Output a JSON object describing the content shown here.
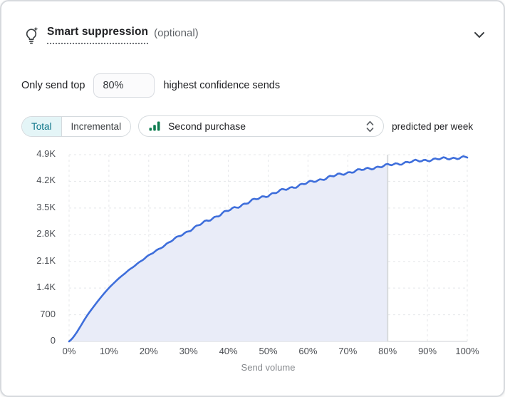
{
  "header": {
    "title": "Smart suppression",
    "optional": "(optional)"
  },
  "suppression": {
    "prefix": "Only send top",
    "value": "80%",
    "suffix": "highest confidence sends"
  },
  "controls": {
    "toggle": [
      {
        "label": "Total",
        "selected": true
      },
      {
        "label": "Incremental",
        "selected": false
      }
    ],
    "metric_select": {
      "value": "Second purchase"
    },
    "suffix": "predicted per week"
  },
  "colors": {
    "accent_blue": "#3e6edb",
    "area_fill": "#e9ecf8",
    "teal_text": "#0c7589",
    "teal_bg": "#e4f5f7",
    "green_icon": "#0e7c50",
    "marker_line": "#d8dadc",
    "grid_line": "#e5e7ea",
    "axis_line": "#dfe1e4"
  },
  "chart_data": {
    "type": "area",
    "title": "",
    "xlabel": "Send volume",
    "ylabel": "",
    "x_percent": [
      0,
      5,
      10,
      15,
      20,
      25,
      30,
      35,
      40,
      45,
      50,
      55,
      60,
      65,
      70,
      75,
      80,
      85,
      90,
      95,
      100
    ],
    "values": [
      0,
      750,
      1400,
      1870,
      2250,
      2590,
      2900,
      3180,
      3430,
      3650,
      3840,
      4010,
      4160,
      4300,
      4430,
      4530,
      4620,
      4700,
      4760,
      4800,
      4830
    ],
    "x_ticks": [
      "0%",
      "10%",
      "20%",
      "30%",
      "40%",
      "50%",
      "60%",
      "70%",
      "80%",
      "90%",
      "100%"
    ],
    "y_ticks_top_to_bottom": [
      "4.9K",
      "4.2K",
      "3.5K",
      "2.8K",
      "2.1K",
      "1.4K",
      "700",
      "0"
    ],
    "ylim": [
      0,
      4900
    ],
    "xlim_percent": [
      0,
      100
    ],
    "grid": true,
    "legend": "none",
    "fill_until_percent": 80,
    "marker_percent": 80
  }
}
